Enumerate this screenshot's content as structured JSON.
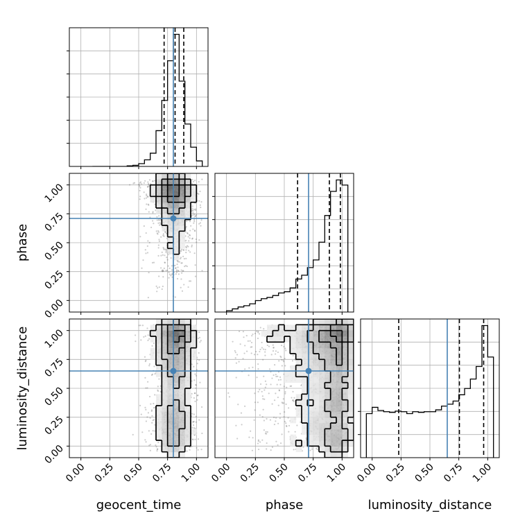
{
  "chart_data": {
    "type": "corner",
    "parameters": [
      {
        "key": "geocent_time",
        "label": "geocent_time"
      },
      {
        "key": "phase",
        "label": "phase"
      },
      {
        "key": "luminosity_distance",
        "label": "luminosity_distance"
      }
    ],
    "axis_range": [
      -0.1,
      1.1
    ],
    "ticks": [
      0.0,
      0.25,
      0.5,
      0.75,
      1.0
    ],
    "tick_labels": [
      "0.00",
      "0.25",
      "0.50",
      "0.75",
      "1.00"
    ],
    "grid": true,
    "truth_color": "#4682b4",
    "truths": {
      "geocent_time": 0.8,
      "phase": 0.71,
      "luminosity_distance": 0.65
    },
    "quantiles": {
      "geocent_time": [
        0.72,
        0.815,
        0.89
      ],
      "phase": [
        0.615,
        0.89,
        0.985
      ],
      "luminosity_distance": [
        0.23,
        0.755,
        0.965
      ]
    },
    "histograms": {
      "geocent_time": {
        "bin_edges": [
          0.1,
          0.15,
          0.2,
          0.25,
          0.3,
          0.35,
          0.4,
          0.45,
          0.5,
          0.55,
          0.6,
          0.65,
          0.7,
          0.75,
          0.8,
          0.85,
          0.9,
          0.95,
          1.0,
          1.05
        ],
        "counts": [
          0,
          0,
          0,
          0,
          0,
          0,
          1,
          2,
          5,
          12,
          24,
          65,
          120,
          192,
          240,
          155,
          77,
          35,
          10
        ]
      },
      "phase": {
        "bin_edges": [
          0.0,
          0.05,
          0.1,
          0.15,
          0.2,
          0.25,
          0.3,
          0.35,
          0.4,
          0.45,
          0.5,
          0.55,
          0.6,
          0.65,
          0.7,
          0.75,
          0.8,
          0.85,
          0.9,
          0.95,
          1.0,
          1.05
        ],
        "counts": [
          2,
          5,
          8,
          10,
          13,
          18,
          21,
          23,
          26,
          30,
          32,
          38,
          52,
          58,
          70,
          82,
          110,
          152,
          190,
          208,
          200
        ]
      },
      "luminosity_distance": {
        "bin_edges": [
          -0.05,
          0.0,
          0.05,
          0.1,
          0.15,
          0.2,
          0.25,
          0.3,
          0.35,
          0.4,
          0.45,
          0.5,
          0.55,
          0.6,
          0.65,
          0.7,
          0.75,
          0.8,
          0.85,
          0.9,
          0.95,
          1.0,
          1.05
        ],
        "counts": [
          70,
          80,
          75,
          73,
          72,
          74,
          73,
          70,
          73,
          72,
          73,
          73,
          76,
          82,
          85,
          90,
          100,
          110,
          125,
          145,
          210,
          160
        ]
      }
    },
    "density_peaks": {
      "phase_vs_geocent_time": [
        0.82,
        0.97
      ],
      "luminosity_distance_vs_geocent_time": [
        0.8,
        0.96
      ],
      "luminosity_distance_vs_phase": [
        0.97,
        0.96
      ]
    },
    "xlabel_row": [
      "geocent_time",
      "phase",
      "luminosity_distance"
    ],
    "ylabel_column": [
      "",
      "phase",
      "luminosity_distance"
    ]
  }
}
